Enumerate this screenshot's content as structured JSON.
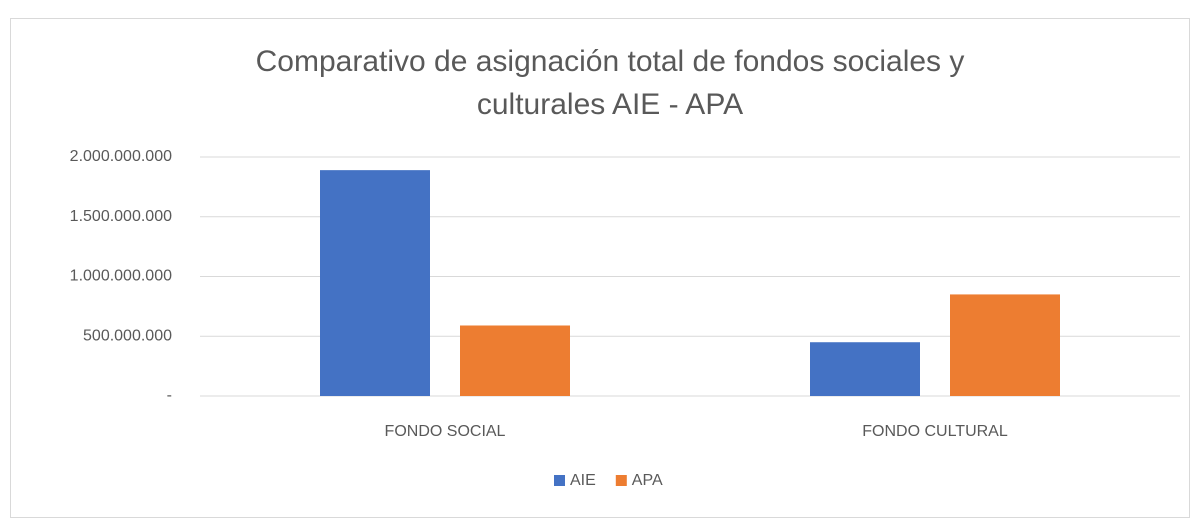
{
  "chart_data": {
    "type": "bar",
    "title": "Comparativo de asignación total de fondos sociales y culturales AIE - APA",
    "categories": [
      "FONDO SOCIAL",
      "FONDO CULTURAL"
    ],
    "series": [
      {
        "name": "AIE",
        "color": "#4472c4",
        "values": [
          1890000000,
          450000000
        ]
      },
      {
        "name": "APA",
        "color": "#ed7d31",
        "values": [
          590000000,
          850000000
        ]
      }
    ],
    "ylim": [
      0,
      2000000000
    ],
    "yticks": [
      {
        "value": 0,
        "label": "-"
      },
      {
        "value": 500000000,
        "label": "500.000.000"
      },
      {
        "value": 1000000000,
        "label": "1.000.000.000"
      },
      {
        "value": 1500000000,
        "label": "1.500.000.000"
      },
      {
        "value": 2000000000,
        "label": "2.000.000.000"
      }
    ],
    "grid": true,
    "legend": "bottom"
  }
}
